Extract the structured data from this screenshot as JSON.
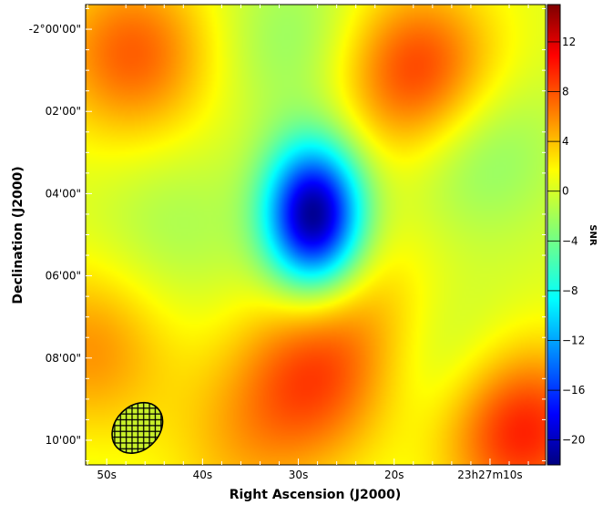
{
  "chart_data": {
    "type": "heatmap",
    "title": "",
    "xlabel": "Right Ascension (J2000)",
    "ylabel": "Declination (J2000)",
    "x_ticks": [
      "50s",
      "40s",
      "30s",
      "20s",
      "23h27m10s"
    ],
    "y_ticks": [
      "-2°00'00\"",
      "02'00\"",
      "04'00\"",
      "06'00\"",
      "08'00\"",
      "10'00\""
    ],
    "y_range_arcmin": [
      -10.6,
      0.6
    ],
    "colorbar": {
      "label": "SNR",
      "range": [
        -22,
        15
      ],
      "ticks": [
        "12",
        "8",
        "4",
        "0",
        "−4",
        "−8",
        "−12",
        "−16",
        "−20"
      ],
      "tick_values": [
        12,
        8,
        4,
        0,
        -4,
        -8,
        -12,
        -16,
        -20
      ],
      "colormap": "jet"
    },
    "background_snr": 0,
    "features": [
      {
        "ra_s": 47.3,
        "dec_arcmin": -0.6,
        "snr": 7
      },
      {
        "ra_s": 17.5,
        "dec_arcmin": -1.1,
        "snr": 9
      },
      {
        "ra_s": 28.4,
        "dec_arcmin": -4.55,
        "snr": -22
      },
      {
        "ra_s": 28.5,
        "dec_arcmin": -8.55,
        "snr": 7
      },
      {
        "ra_s": 51.8,
        "dec_arcmin": -7.8,
        "snr": 5
      },
      {
        "ra_s": 7.0,
        "dec_arcmin": -9.7,
        "snr": 10
      },
      {
        "ra_s": 23.0,
        "dec_arcmin": -6.7,
        "snr": 3
      },
      {
        "ra_s": 36.0,
        "dec_arcmin": -10.2,
        "snr": 3
      },
      {
        "ra_s": 11.5,
        "dec_arcmin": -2.8,
        "snr": -4
      },
      {
        "ra_s": 43.0,
        "dec_arcmin": -4.8,
        "snr": -2
      },
      {
        "ra_s": 14.0,
        "dec_arcmin": -8.3,
        "snr": -3
      },
      {
        "ra_s": 30.0,
        "dec_arcmin": -0.3,
        "snr": -3
      }
    ],
    "beam": {
      "ra_s": 46.8,
      "dec_arcmin": -9.7,
      "hatched": true
    }
  }
}
